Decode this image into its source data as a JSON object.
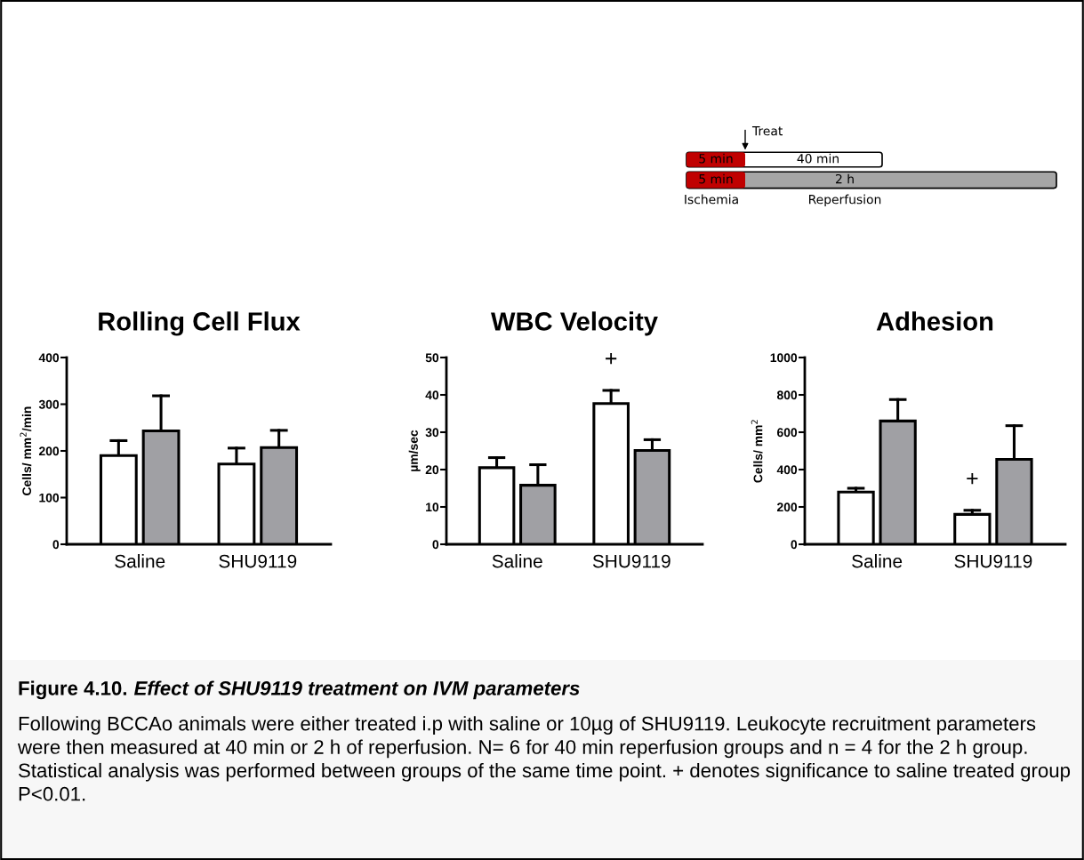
{
  "chart_data": [
    {
      "type": "other",
      "annotations": [
        "Treat",
        "5 min",
        "40 min",
        "5 min",
        "2 h",
        "Ischemia",
        "Reperfusion"
      ]
    },
    {
      "type": "bar",
      "title": "Rolling Cell Flux",
      "ylabel": "Cells/ mm$^{2}$/min",
      "categories": [
        "Saline",
        "SHU9119"
      ],
      "ylim": [
        0,
        400
      ],
      "yticks": [
        0,
        100,
        200,
        300,
        400
      ],
      "grid": false,
      "series": [
        {
          "color": "#ffffff",
          "values": [
            190,
            172
          ],
          "errors": [
            [
              190,
              222
            ],
            [
              172,
              206
            ]
          ]
        },
        {
          "color": "#a0a0a4",
          "values": [
            243,
            207
          ],
          "errors": [
            [
              243,
              318
            ],
            [
              207,
              244
            ]
          ]
        }
      ]
    },
    {
      "type": "bar",
      "title": "WBC Velocity",
      "ylabel": "µm/sec",
      "categories": [
        "Saline",
        "SHU9119"
      ],
      "ylim": [
        0,
        50
      ],
      "yticks": [
        0,
        10,
        20,
        30,
        40,
        50
      ],
      "grid": false,
      "annotations": [
        "+"
      ],
      "series": [
        {
          "color": "#ffffff",
          "values": [
            20.5,
            37.7
          ],
          "errors": [
            [
              20.5,
              23.2
            ],
            [
              37.7,
              41.2
            ]
          ]
        },
        {
          "color": "#a0a0a4",
          "values": [
            15.8,
            25.1
          ],
          "errors": [
            [
              15.8,
              21.3
            ],
            [
              25.1,
              28.0
            ]
          ]
        }
      ]
    },
    {
      "type": "bar",
      "title": "Adhesion",
      "ylabel": "Cells/ mm$^{2}$",
      "categories": [
        "Saline",
        "SHU9119"
      ],
      "ylim": [
        0,
        1000
      ],
      "yticks": [
        0,
        200,
        400,
        600,
        800,
        1000
      ],
      "grid": false,
      "annotations": [
        "+"
      ],
      "series": [
        {
          "color": "#ffffff",
          "values": [
            280,
            160
          ],
          "errors": [
            [
              280,
              300
            ],
            [
              160,
              182
            ]
          ]
        },
        {
          "color": "#a0a0a4",
          "values": [
            660,
            455
          ],
          "errors": [
            [
              660,
              775
            ],
            [
              455,
              635
            ]
          ]
        }
      ]
    },
    {
      "type": "other",
      "annotations": [
        "Figure 4.10.",
        "Effect of SHU9119 treatment on IVM parameters",
        "Following BCCAo animals were either treated i.p with saline or 10µg of SHU9119. Leukocyte recruitment parameters were then measured at 40 min or 2 h of reperfusion. N= 6 for 40 min reperfusion groups and n = 4 for the 2 h group. Statistical analysis was performed between groups of the same time point. + denotes significance to saline treated group P<0.01."
      ]
    }
  ]
}
